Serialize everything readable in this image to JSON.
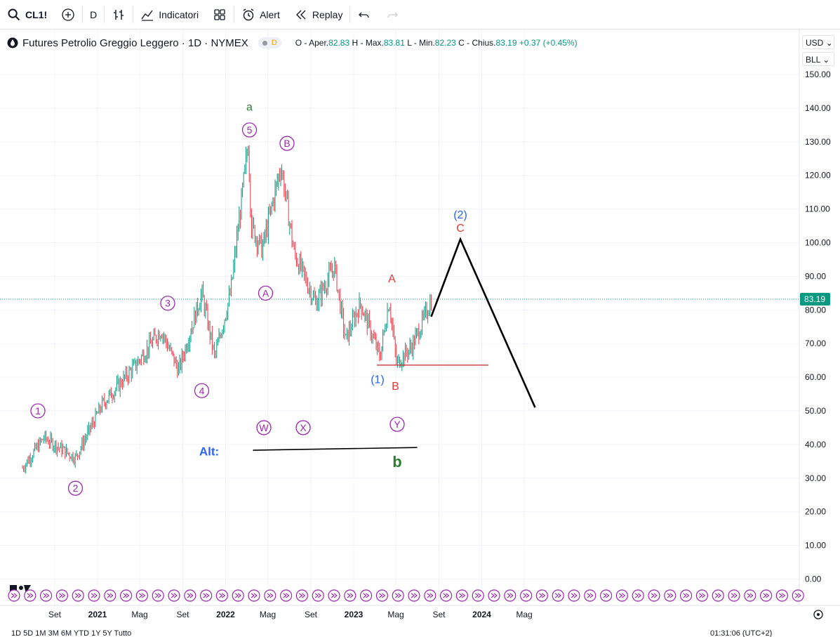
{
  "toolbar": {
    "symbol": "CL1!",
    "interval": "D",
    "indicators": "Indicatori",
    "alert": "Alert",
    "replay": "Replay"
  },
  "legend": {
    "title": "Futures Petrolio Greggio Leggero · 1D · NYMEX",
    "badge": "D",
    "o_label": "O - Aper.",
    "o": "82.83",
    "h_label": "H - Max.",
    "h": "83.81",
    "l_label": "L - Min.",
    "l": "82.23",
    "c_label": "C - Chius.",
    "c": "83.19",
    "change": "+0.37 (+0.45%)"
  },
  "currency": "USD",
  "unit": "BLL",
  "colors": {
    "up": "#089981",
    "down": "#f23645",
    "wave_purple": "#9c27b0",
    "wave_green": "#2e7d32",
    "wave_blue": "#2962ff",
    "wave_red": "#e53935"
  },
  "chart_data": {
    "type": "line",
    "xlabel": "",
    "ylabel": "",
    "ylim": [
      0,
      150
    ],
    "y_ticks": [
      "150.00",
      "140.00",
      "130.00",
      "120.00",
      "110.00",
      "100.00",
      "90.00",
      "80.00",
      "70.00",
      "60.00",
      "50.00",
      "40.00",
      "30.00",
      "20.00",
      "10.00",
      "0.00"
    ],
    "x_ticks": [
      "Set",
      "2021",
      "Mag",
      "Set",
      "2022",
      "Mag",
      "Set",
      "2023",
      "Mag",
      "Set",
      "2024",
      "Mag"
    ],
    "last_price_label": "83.19",
    "last_price": 83.19,
    "series": [
      {
        "x": [
          "2020-06-01",
          "2020-08-01",
          "2020-10-30",
          "2021-01-15",
          "2021-04-15",
          "2021-07-01",
          "2021-08-20",
          "2021-10-25",
          "2021-12-01",
          "2022-01-15",
          "2022-03-07",
          "2022-03-15",
          "2022-04-15",
          "2022-06-08",
          "2022-07-15",
          "2022-09-15",
          "2022-11-07",
          "2022-12-09",
          "2023-01-20",
          "2023-03-17",
          "2023-04-12",
          "2023-05-03",
          "2023-06-15",
          "2023-07-15",
          "2023-08-10"
        ],
        "values": [
          33,
          42,
          36,
          52,
          63,
          74,
          62,
          85,
          66,
          85,
          130,
          105,
          98,
          123,
          97,
          82,
          93,
          71,
          82,
          66,
          83,
          64,
          69,
          76,
          83
        ]
      },
      {
        "name": "projection",
        "x": [
          "2023-08-10",
          "2023-11-01",
          "2024-06-01"
        ],
        "values": [
          78,
          101,
          51
        ]
      }
    ],
    "levels": [
      {
        "label": "B",
        "y": 63.6,
        "x_start": "2023-03-08",
        "x_end": "2024-01-20"
      },
      {
        "label": "Alt:",
        "y_start": 38.3,
        "y_end": 39.1,
        "x_start": "2022-03-20",
        "x_end": "2023-07-01"
      }
    ],
    "annotations": [
      {
        "text": "a",
        "x": "2022-03-10",
        "y": 140.5,
        "color": "#2e7d32"
      },
      {
        "text": "5",
        "x": "2022-03-10",
        "y": 133.5,
        "color": "#9c27b0",
        "circle": true
      },
      {
        "text": "B",
        "x": "2022-06-25",
        "y": 129.5,
        "color": "#9c27b0",
        "circle": true
      },
      {
        "text": "A",
        "x": "2022-04-25",
        "y": 85,
        "color": "#9c27b0",
        "circle": true
      },
      {
        "text": "3",
        "x": "2021-07-20",
        "y": 82,
        "color": "#9c27b0",
        "circle": true
      },
      {
        "text": "4",
        "x": "2021-10-25",
        "y": 56,
        "color": "#9c27b0",
        "circle": true
      },
      {
        "text": "1",
        "x": "2020-07-15",
        "y": 50,
        "color": "#9c27b0",
        "circle": true
      },
      {
        "text": "2",
        "x": "2020-10-30",
        "y": 27,
        "color": "#9c27b0",
        "circle": true
      },
      {
        "text": "W",
        "x": "2022-04-20",
        "y": 45,
        "color": "#9c27b0",
        "circle": true
      },
      {
        "text": "X",
        "x": "2022-08-10",
        "y": 45,
        "color": "#9c27b0",
        "circle": true
      },
      {
        "text": "Y",
        "x": "2023-05-05",
        "y": 46,
        "color": "#9c27b0",
        "circle": true
      },
      {
        "text": "Alt:",
        "x": "2021-11-15",
        "y": 38,
        "color": "#2962ff"
      },
      {
        "text": "b",
        "x": "2023-05-05",
        "y": 34.5,
        "color": "#2e7d32"
      },
      {
        "text": "(1)",
        "x": "2023-03-10",
        "y": 59.5,
        "color": "#2962ff"
      },
      {
        "text": "B",
        "x": "2023-04-30",
        "y": 57.5,
        "color": "#e53935"
      },
      {
        "text": "A",
        "x": "2023-04-20",
        "y": 89.5,
        "color": "#e53935"
      },
      {
        "text": "(2)",
        "x": "2023-11-01",
        "y": 108.5,
        "color": "#2962ff"
      },
      {
        "text": "C",
        "x": "2023-11-01",
        "y": 104.5,
        "color": "#e53935"
      }
    ],
    "grid": true,
    "legend": "top-left"
  },
  "bottom_bar": {
    "ranges": "1D  5D  1M  3M  6M  YTD  1Y  5Y  Tutto",
    "time": "01:31:06 (UTC+2)"
  }
}
